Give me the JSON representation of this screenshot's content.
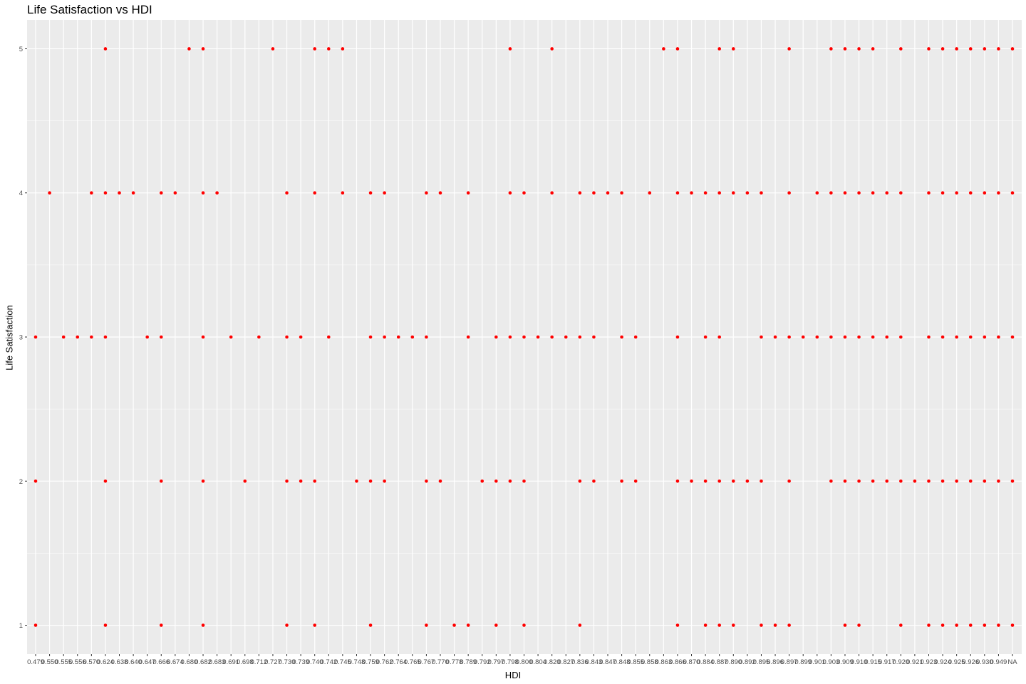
{
  "chart_data": {
    "type": "scatter",
    "title": "Life Satisfaction vs HDI",
    "xlabel": "HDI",
    "ylabel": "Life Satisfaction",
    "x_axis_type": "categorical",
    "x_categories": [
      "0.479",
      "0.550",
      "0.555",
      "0.556",
      "0.570",
      "0.624",
      "0.638",
      "0.640",
      "0.647",
      "0.666",
      "0.674",
      "0.680",
      "0.682",
      "0.683",
      "0.691",
      "0.698",
      "0.712",
      "0.727",
      "0.730",
      "0.739",
      "0.740",
      "0.742",
      "0.745",
      "0.748",
      "0.759",
      "0.762",
      "0.764",
      "0.765",
      "0.767",
      "0.770",
      "0.778",
      "0.789",
      "0.792",
      "0.797",
      "0.798",
      "0.800",
      "0.804",
      "0.820",
      "0.827",
      "0.836",
      "0.843",
      "0.847",
      "0.848",
      "0.855",
      "0.858",
      "0.863",
      "0.866",
      "0.870",
      "0.884",
      "0.887",
      "0.890",
      "0.892",
      "0.895",
      "0.896",
      "0.897",
      "0.899",
      "0.901",
      "0.903",
      "0.909",
      "0.910",
      "0.915",
      "0.917",
      "0.920",
      "0.921",
      "0.923",
      "0.924",
      "0.925",
      "0.926",
      "0.930",
      "0.949",
      "NA"
    ],
    "y_ticks": [
      1,
      2,
      3,
      4,
      5
    ],
    "ylim": [
      0.8,
      5.2
    ],
    "grid": true,
    "legend": "none",
    "point_color": "#ff0000",
    "panel_color": "#ebebeb",
    "grid_color": "#ffffff",
    "points": [
      {
        "x": "0.479",
        "y": [
          1,
          2,
          3
        ]
      },
      {
        "x": "0.550",
        "y": [
          4
        ]
      },
      {
        "x": "0.555",
        "y": [
          3
        ]
      },
      {
        "x": "0.556",
        "y": [
          3
        ]
      },
      {
        "x": "0.570",
        "y": [
          3,
          4
        ]
      },
      {
        "x": "0.624",
        "y": [
          1,
          2,
          3,
          4,
          5
        ]
      },
      {
        "x": "0.638",
        "y": [
          4
        ]
      },
      {
        "x": "0.640",
        "y": [
          4
        ]
      },
      {
        "x": "0.647",
        "y": [
          3
        ]
      },
      {
        "x": "0.666",
        "y": [
          1,
          2,
          3,
          4
        ]
      },
      {
        "x": "0.674",
        "y": [
          4
        ]
      },
      {
        "x": "0.680",
        "y": [
          5
        ]
      },
      {
        "x": "0.682",
        "y": [
          1,
          2,
          3,
          4,
          5
        ]
      },
      {
        "x": "0.683",
        "y": [
          4
        ]
      },
      {
        "x": "0.691",
        "y": [
          3
        ]
      },
      {
        "x": "0.698",
        "y": [
          2
        ]
      },
      {
        "x": "0.712",
        "y": [
          3
        ]
      },
      {
        "x": "0.727",
        "y": [
          5
        ]
      },
      {
        "x": "0.730",
        "y": [
          1,
          2,
          3,
          4
        ]
      },
      {
        "x": "0.739",
        "y": [
          2,
          3
        ]
      },
      {
        "x": "0.740",
        "y": [
          1,
          2,
          4,
          5
        ]
      },
      {
        "x": "0.742",
        "y": [
          3,
          5
        ]
      },
      {
        "x": "0.745",
        "y": [
          4,
          5
        ]
      },
      {
        "x": "0.748",
        "y": [
          2
        ]
      },
      {
        "x": "0.759",
        "y": [
          1,
          2,
          3,
          4
        ]
      },
      {
        "x": "0.762",
        "y": [
          2,
          3,
          4
        ]
      },
      {
        "x": "0.764",
        "y": [
          3
        ]
      },
      {
        "x": "0.765",
        "y": [
          3
        ]
      },
      {
        "x": "0.767",
        "y": [
          1,
          2,
          3,
          4
        ]
      },
      {
        "x": "0.770",
        "y": [
          2,
          4
        ]
      },
      {
        "x": "0.778",
        "y": [
          1
        ]
      },
      {
        "x": "0.789",
        "y": [
          1,
          3,
          4
        ]
      },
      {
        "x": "0.792",
        "y": [
          2
        ]
      },
      {
        "x": "0.797",
        "y": [
          1,
          2,
          3
        ]
      },
      {
        "x": "0.798",
        "y": [
          2,
          3,
          4,
          5
        ]
      },
      {
        "x": "0.800",
        "y": [
          1,
          2,
          3,
          4
        ]
      },
      {
        "x": "0.804",
        "y": [
          3
        ]
      },
      {
        "x": "0.820",
        "y": [
          3,
          4,
          5
        ]
      },
      {
        "x": "0.827",
        "y": [
          3
        ]
      },
      {
        "x": "0.836",
        "y": [
          1,
          2,
          3,
          4
        ]
      },
      {
        "x": "0.843",
        "y": [
          2,
          3,
          4
        ]
      },
      {
        "x": "0.847",
        "y": [
          4
        ]
      },
      {
        "x": "0.848",
        "y": [
          2,
          3,
          4
        ]
      },
      {
        "x": "0.855",
        "y": [
          2,
          3
        ]
      },
      {
        "x": "0.858",
        "y": [
          4
        ]
      },
      {
        "x": "0.863",
        "y": [
          5
        ]
      },
      {
        "x": "0.866",
        "y": [
          1,
          2,
          3,
          4,
          5
        ]
      },
      {
        "x": "0.870",
        "y": [
          2,
          4
        ]
      },
      {
        "x": "0.884",
        "y": [
          1,
          2,
          3,
          4
        ]
      },
      {
        "x": "0.887",
        "y": [
          1,
          2,
          3,
          4,
          5
        ]
      },
      {
        "x": "0.890",
        "y": [
          1,
          2,
          4,
          5
        ]
      },
      {
        "x": "0.892",
        "y": [
          2,
          4
        ]
      },
      {
        "x": "0.895",
        "y": [
          1,
          2,
          3,
          4
        ]
      },
      {
        "x": "0.896",
        "y": [
          1,
          3
        ]
      },
      {
        "x": "0.897",
        "y": [
          1,
          2,
          3,
          4,
          5
        ]
      },
      {
        "x": "0.899",
        "y": [
          3
        ]
      },
      {
        "x": "0.901",
        "y": [
          3,
          4
        ]
      },
      {
        "x": "0.903",
        "y": [
          2,
          3,
          4,
          5
        ]
      },
      {
        "x": "0.909",
        "y": [
          1,
          2,
          3,
          4,
          5
        ]
      },
      {
        "x": "0.910",
        "y": [
          1,
          2,
          3,
          4,
          5
        ]
      },
      {
        "x": "0.915",
        "y": [
          2,
          3,
          4,
          5
        ]
      },
      {
        "x": "0.917",
        "y": [
          2,
          3,
          4
        ]
      },
      {
        "x": "0.920",
        "y": [
          1,
          2,
          3,
          4,
          5
        ]
      },
      {
        "x": "0.921",
        "y": [
          2
        ]
      },
      {
        "x": "0.923",
        "y": [
          1,
          2,
          3,
          4,
          5
        ]
      },
      {
        "x": "0.924",
        "y": [
          1,
          2,
          3,
          4,
          5
        ]
      },
      {
        "x": "0.925",
        "y": [
          1,
          2,
          3,
          4,
          5
        ]
      },
      {
        "x": "0.926",
        "y": [
          1,
          2,
          3,
          4,
          5
        ]
      },
      {
        "x": "0.930",
        "y": [
          1,
          2,
          3,
          4,
          5
        ]
      },
      {
        "x": "0.949",
        "y": [
          1,
          2,
          3,
          4,
          5
        ]
      },
      {
        "x": "NA",
        "y": [
          1,
          2,
          3,
          4,
          5
        ]
      }
    ]
  }
}
